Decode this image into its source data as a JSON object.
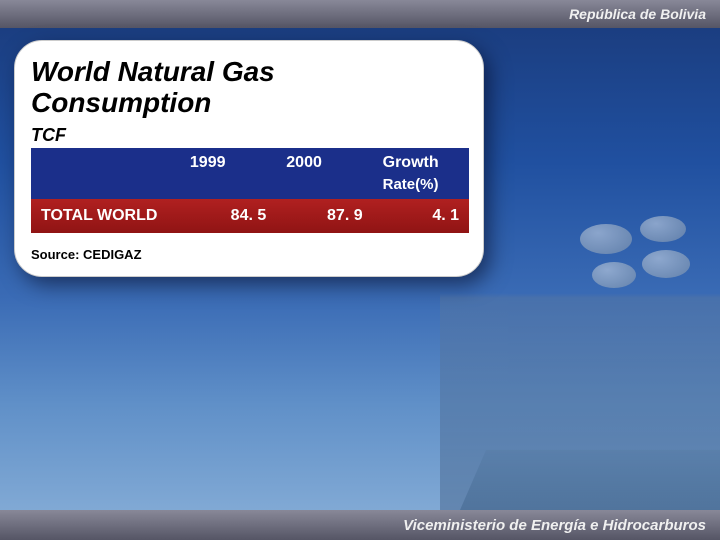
{
  "header": {
    "top_right": "República de Bolivia",
    "bottom_right": "Viceministerio de Energía e Hidrocarburos"
  },
  "card": {
    "title_line1": "World Natural Gas",
    "title_line2": "Consumption",
    "unit": "TCF",
    "source_label": "Source: CEDIGAZ"
  },
  "table": {
    "columns": {
      "blank": "",
      "c1": "1999",
      "c2": "2000",
      "growth": "Growth",
      "growth_sub": "Rate(%)"
    },
    "row": {
      "label": "TOTAL WORLD",
      "v1": "84. 5",
      "v2": "87. 9",
      "growth": "4. 1"
    },
    "colors": {
      "header_bg": "#1b2f8a",
      "data_bg": "#a01818",
      "card_bg": "#ffffff",
      "text_white": "#ffffff",
      "text_black": "#000000"
    }
  }
}
